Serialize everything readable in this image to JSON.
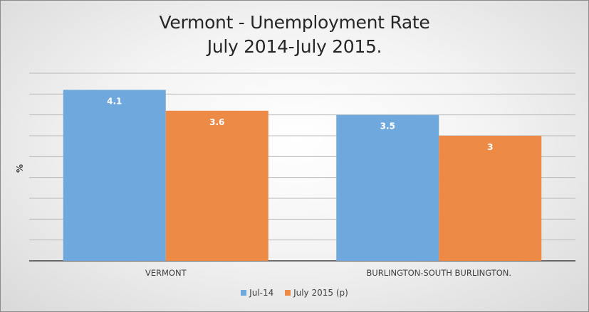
{
  "chart_data": {
    "type": "bar",
    "title": [
      "Vermont - Unemployment Rate",
      "July 2014-July 2015."
    ],
    "xlabel": "",
    "ylabel": "%",
    "ylim": [
      0,
      4.5
    ],
    "grid": true,
    "legend_position": "bottom",
    "categories": [
      "VERMONT",
      "BURLINGTON-SOUTH BURLINGTON."
    ],
    "series": [
      {
        "name": "Jul-14",
        "values": [
          4.1,
          3.5
        ],
        "color": "#6fa8dc"
      },
      {
        "name": "July 2015 (p)",
        "values": [
          3.6,
          3
        ],
        "color": "#ed8a45"
      }
    ]
  }
}
